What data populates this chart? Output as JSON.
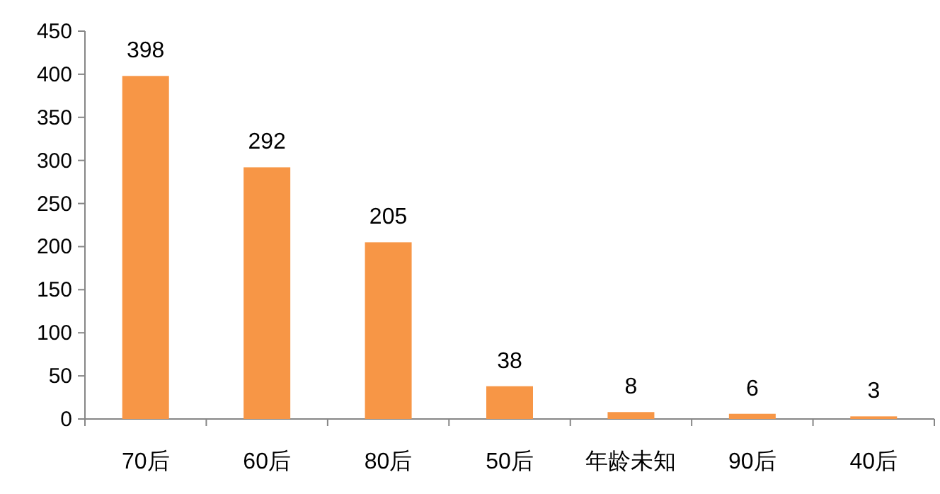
{
  "chart_data": {
    "type": "bar",
    "categories": [
      "70后",
      "60后",
      "80后",
      "50后",
      "年龄未知",
      "90后",
      "40后"
    ],
    "values": [
      398,
      292,
      205,
      38,
      8,
      6,
      3
    ],
    "color": "#f79646",
    "ylim": [
      0,
      450
    ],
    "yticks": [
      0,
      50,
      100,
      150,
      200,
      250,
      300,
      350,
      400,
      450
    ],
    "data_labels": true
  }
}
